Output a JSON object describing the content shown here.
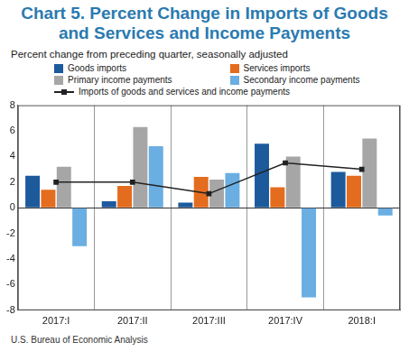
{
  "chart_data": {
    "type": "bar",
    "title": "Chart 5. Percent Change in Imports of Goods and Services and Income Payments",
    "subtitle": "Percent change from preceding quarter, seasonally adjusted",
    "source": "U.S. Bureau of Economic Analysis",
    "categories": [
      "2017:I",
      "2017:II",
      "2017:III",
      "2017:IV",
      "2018:I"
    ],
    "series": [
      {
        "name": "Goods imports",
        "color": "#1c5a9c",
        "values": [
          2.5,
          0.5,
          0.4,
          5.0,
          2.8
        ]
      },
      {
        "name": "Services imports",
        "color": "#e46c1e",
        "values": [
          1.4,
          1.7,
          2.4,
          1.6,
          2.5
        ]
      },
      {
        "name": "Primary income payments",
        "color": "#a6a6a6",
        "values": [
          3.2,
          6.3,
          2.2,
          4.0,
          5.4
        ]
      },
      {
        "name": "Secondary income payments",
        "color": "#6aaee2",
        "values": [
          -3.0,
          4.8,
          2.7,
          -7.0,
          -0.6
        ]
      },
      {
        "name": "Imports of goods and services and income payments",
        "color": "#222222",
        "type": "line",
        "marker": "square",
        "values": [
          2.0,
          2.0,
          1.1,
          3.5,
          3.0
        ]
      }
    ],
    "ylim": [
      -8,
      8
    ],
    "yticks": [
      -8,
      -6,
      -4,
      -2,
      0,
      2,
      4,
      6,
      8
    ],
    "grid": false,
    "legend": "top"
  }
}
